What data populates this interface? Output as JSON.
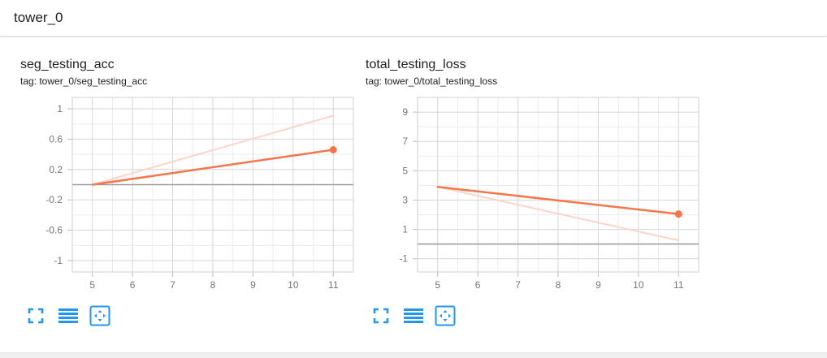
{
  "header": {
    "title": "tower_0"
  },
  "colors": {
    "main_line": "#f4764a",
    "smoothed_line": "#fbd5c8",
    "grid": "#d6d6d6",
    "zero_line": "#999999",
    "icon_blue": "#2196f3"
  },
  "toolbar": {
    "icons": [
      "fullscreen-icon",
      "log-scale-icon",
      "fit-domain-icon"
    ]
  },
  "chart_data": [
    {
      "type": "line",
      "title": "seg_testing_acc",
      "tag": "tag: tower_0/seg_testing_acc",
      "xlim": [
        4.5,
        11.5
      ],
      "ylim": [
        -1.15,
        1.15
      ],
      "x_ticks": [
        5,
        6,
        7,
        8,
        9,
        10,
        11
      ],
      "x_tick_labels": [
        "5",
        "6",
        "7",
        "8",
        "9",
        "10",
        "11"
      ],
      "y_ticks": [
        1,
        0.6,
        0.2,
        -0.2,
        -0.6,
        -1
      ],
      "y_tick_labels": [
        "1",
        "0.6",
        "0.2",
        "-0.2",
        "-0.6",
        "-1"
      ],
      "zero_line": 0,
      "grid": true,
      "series": [
        {
          "style": "faded",
          "x": [
            5,
            11
          ],
          "y": [
            0.0,
            0.91
          ]
        },
        {
          "style": "main",
          "x": [
            5,
            11
          ],
          "y": [
            0.0,
            0.46
          ],
          "end_marker": true
        }
      ]
    },
    {
      "type": "line",
      "title": "total_testing_loss",
      "tag": "tag: tower_0/total_testing_loss",
      "xlim": [
        4.5,
        11.5
      ],
      "ylim": [
        -1.9,
        10.0
      ],
      "x_ticks": [
        5,
        6,
        7,
        8,
        9,
        10,
        11
      ],
      "x_tick_labels": [
        "5",
        "6",
        "7",
        "8",
        "9",
        "10",
        "11"
      ],
      "y_ticks": [
        9,
        7,
        5,
        3,
        1,
        -1
      ],
      "y_tick_labels": [
        "9",
        "7",
        "5",
        "3",
        "1",
        "-1"
      ],
      "zero_line": 0,
      "grid": true,
      "series": [
        {
          "style": "faded",
          "x": [
            5,
            11
          ],
          "y": [
            3.9,
            0.25
          ]
        },
        {
          "style": "main",
          "x": [
            5,
            11
          ],
          "y": [
            3.9,
            2.05
          ],
          "end_marker": true
        }
      ]
    }
  ]
}
